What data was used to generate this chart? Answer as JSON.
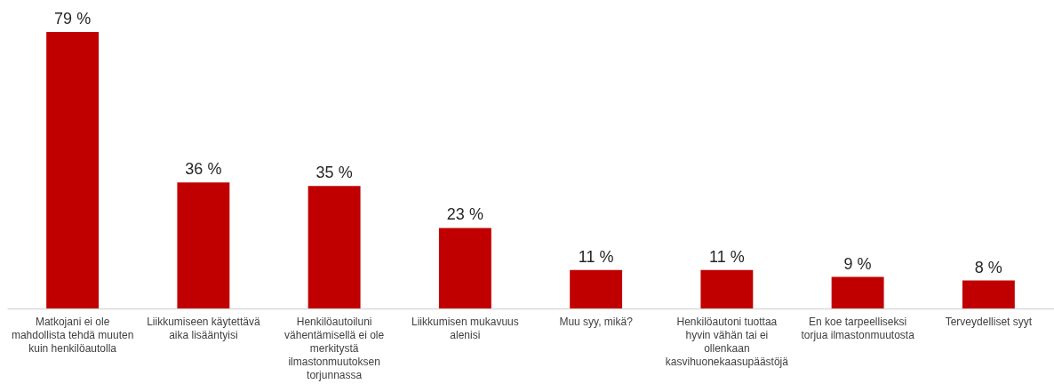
{
  "chart_data": {
    "type": "bar",
    "categories": [
      "Matkojani ei ole mahdollista tehdä muuten kuin henkilöautolla",
      "Liikkumiseen käytettävä aika lisääntyisi",
      "Henkilöautoiluni vähentämisellä ei ole merkitystä ilmastonmuutoksen torjunnassa",
      "Liikkumisen mukavuus alenisi",
      "Muu syy, mikä?",
      "Henkilöautoni tuottaa hyvin vähän tai ei ollenkaan kasvihuonekaasupäästöjä",
      "En koe tarpeelliseksi torjua ilmastonmuutosta",
      "Terveydelliset syyt"
    ],
    "values": [
      79,
      36,
      35,
      23,
      11,
      11,
      9,
      8
    ],
    "value_labels": [
      "79 %",
      "36 %",
      "35 %",
      "23 %",
      "11 %",
      "11 %",
      "9 %",
      "8 %"
    ],
    "color": "#c00000"
  }
}
